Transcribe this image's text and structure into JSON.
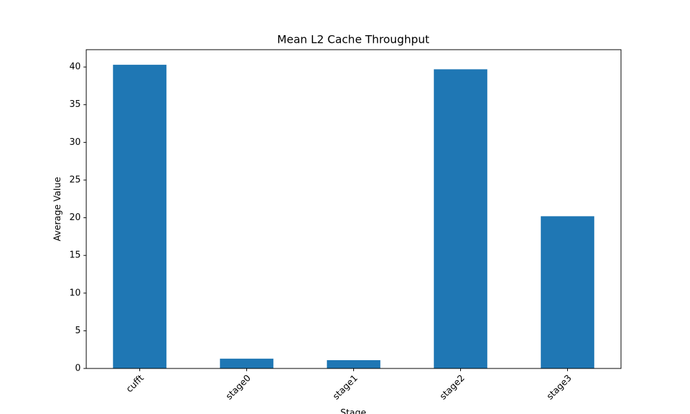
{
  "chart_data": {
    "type": "bar",
    "title": "Mean L2 Cache Throughput",
    "xlabel": "Stage",
    "ylabel": "Average Value",
    "categories": [
      "cufft",
      "stage0",
      "stage1",
      "stage2",
      "stage3"
    ],
    "values": [
      40.3,
      1.3,
      1.1,
      39.7,
      20.2
    ],
    "color": "#1f77b4",
    "ylim": [
      0,
      42.3
    ],
    "yticks": [
      0,
      5,
      10,
      15,
      20,
      25,
      30,
      35,
      40
    ],
    "grid": false
  }
}
